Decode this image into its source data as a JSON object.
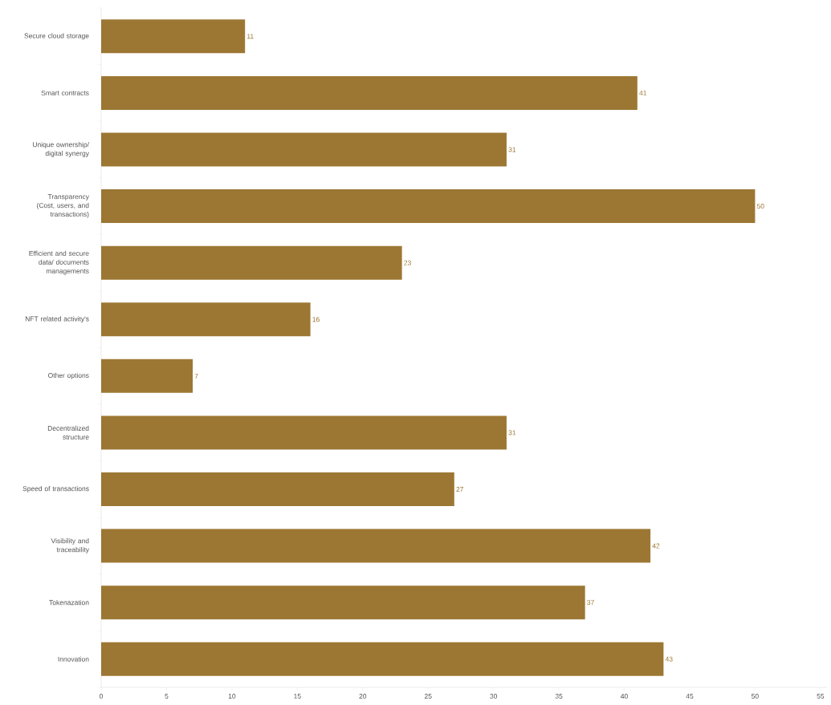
{
  "chart_data": {
    "type": "bar",
    "orientation": "horizontal",
    "categories": [
      "Secure cloud storage",
      "Smart contracts",
      "Unique ownership/ digital synergy",
      "Transparency (Cost, users, and transactions)",
      "Efficient and secure data/ documents managements",
      "NFT related activity's",
      "Other options",
      "Decentralized structure",
      "Speed of transactions",
      "Visibility and traceability",
      "Tokenazation",
      "Innovation"
    ],
    "values": [
      11,
      41,
      31,
      50,
      23,
      16,
      7,
      31,
      27,
      42,
      37,
      43
    ],
    "color": "#9c7733",
    "data_labels": true,
    "xlim": [
      0,
      55.5
    ],
    "xticks": [
      0,
      5,
      10,
      15,
      20,
      25,
      30,
      35,
      40,
      45,
      50,
      55
    ]
  }
}
